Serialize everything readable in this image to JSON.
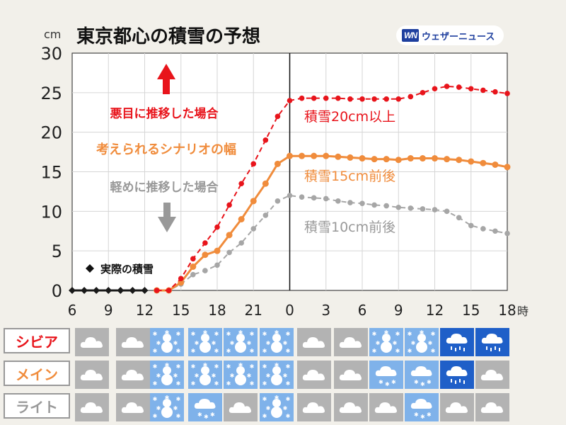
{
  "title": "東京都心の積雪の予想",
  "logo": {
    "mark": "WN",
    "text": "ウェザーニュース"
  },
  "chart_data": {
    "type": "line",
    "title": "東京都心の積雪の予想",
    "ylabel": "cm",
    "xlabel": "時",
    "ylim": [
      0,
      30
    ],
    "yticks": [
      0,
      5,
      10,
      15,
      20,
      25,
      30
    ],
    "x_range": [
      6,
      42
    ],
    "xticks": [
      {
        "x": 6,
        "label": "6"
      },
      {
        "x": 9,
        "label": "9"
      },
      {
        "x": 12,
        "label": "12"
      },
      {
        "x": 15,
        "label": "15"
      },
      {
        "x": 18,
        "label": "18"
      },
      {
        "x": 21,
        "label": "21"
      },
      {
        "x": 24,
        "label": "0"
      },
      {
        "x": 27,
        "label": "3"
      },
      {
        "x": 30,
        "label": "6"
      },
      {
        "x": 33,
        "label": "9"
      },
      {
        "x": 36,
        "label": "12"
      },
      {
        "x": 39,
        "label": "15"
      },
      {
        "x": 42,
        "label": "18"
      }
    ],
    "series": [
      {
        "name": "実際の積雪",
        "color": "#1a1a1a",
        "style": "solid",
        "marker": "diamond",
        "points": [
          [
            6,
            0
          ],
          [
            7,
            0
          ],
          [
            8,
            0
          ],
          [
            9,
            0
          ],
          [
            10,
            0
          ],
          [
            11,
            0
          ],
          [
            12,
            0
          ]
        ]
      },
      {
        "name": "悪目に推移した場合",
        "color": "#e8141b",
        "style": "dashed",
        "marker": "circle",
        "points": [
          [
            13,
            0
          ],
          [
            14,
            0
          ],
          [
            15,
            1.5
          ],
          [
            16,
            4
          ],
          [
            17,
            6
          ],
          [
            18,
            8
          ],
          [
            19,
            10.8
          ],
          [
            20,
            13.5
          ],
          [
            21,
            16
          ],
          [
            22,
            19
          ],
          [
            23,
            22
          ],
          [
            24,
            24
          ],
          [
            25,
            24.3
          ],
          [
            26,
            24.3
          ],
          [
            27,
            24.3
          ],
          [
            28,
            24.3
          ],
          [
            29,
            24.2
          ],
          [
            30,
            24.2
          ],
          [
            31,
            24.2
          ],
          [
            32,
            24.2
          ],
          [
            33,
            24.2
          ],
          [
            34,
            24.5
          ],
          [
            35,
            25
          ],
          [
            36,
            25.5
          ],
          [
            37,
            25.8
          ],
          [
            38,
            25.7
          ],
          [
            39,
            25.5
          ],
          [
            40,
            25.3
          ],
          [
            41,
            25.1
          ],
          [
            42,
            24.9
          ]
        ]
      },
      {
        "name": "メイン",
        "color": "#f08c3c",
        "style": "solid",
        "marker": "circle",
        "points": [
          [
            13,
            0
          ],
          [
            14,
            0
          ],
          [
            15,
            1
          ],
          [
            16,
            3
          ],
          [
            17,
            4.5
          ],
          [
            18,
            5
          ],
          [
            19,
            7
          ],
          [
            20,
            9
          ],
          [
            21,
            11.3
          ],
          [
            22,
            13.5
          ],
          [
            23,
            16
          ],
          [
            24,
            17
          ],
          [
            25,
            17
          ],
          [
            26,
            17
          ],
          [
            27,
            17
          ],
          [
            28,
            16.9
          ],
          [
            29,
            16.8
          ],
          [
            30,
            16.7
          ],
          [
            31,
            16.6
          ],
          [
            32,
            16.6
          ],
          [
            33,
            16.5
          ],
          [
            34,
            16.7
          ],
          [
            35,
            16.7
          ],
          [
            36,
            16.7
          ],
          [
            37,
            16.6
          ],
          [
            38,
            16.5
          ],
          [
            39,
            16.3
          ],
          [
            40,
            16.1
          ],
          [
            41,
            15.9
          ],
          [
            42,
            15.6
          ]
        ]
      },
      {
        "name": "ライト",
        "color": "#a6a6a6",
        "style": "dashed",
        "marker": "circle",
        "points": [
          [
            13,
            0
          ],
          [
            14,
            0
          ],
          [
            15,
            0.8
          ],
          [
            16,
            2
          ],
          [
            17,
            2.5
          ],
          [
            18,
            3.2
          ],
          [
            19,
            4.8
          ],
          [
            20,
            6
          ],
          [
            21,
            7.8
          ],
          [
            22,
            9.5
          ],
          [
            23,
            11.3
          ],
          [
            24,
            12
          ],
          [
            25,
            11.8
          ],
          [
            26,
            11.7
          ],
          [
            27,
            11.6
          ],
          [
            28,
            11.3
          ],
          [
            29,
            11.1
          ],
          [
            30,
            11
          ],
          [
            31,
            10.8
          ],
          [
            32,
            10.7
          ],
          [
            33,
            10.5
          ],
          [
            34,
            10.4
          ],
          [
            35,
            10.3
          ],
          [
            36,
            10.2
          ],
          [
            37,
            10
          ],
          [
            38,
            9.2
          ],
          [
            39,
            8.2
          ],
          [
            40,
            7.8
          ],
          [
            41,
            7.5
          ],
          [
            42,
            7.2
          ]
        ]
      }
    ],
    "annotations": [
      {
        "text": "悪目に推移した場合",
        "color": "#e8141b"
      },
      {
        "text": "考えられるシナリオの幅",
        "color": "#f08c3c"
      },
      {
        "text": "軽めに推移した場合",
        "color": "#999999"
      },
      {
        "text": "積雪20cm以上",
        "color": "#e8141b"
      },
      {
        "text": "積雪15cm前後",
        "color": "#f08c3c"
      },
      {
        "text": "積雪10cm前後",
        "color": "#999999"
      },
      {
        "text": "実際の積雪",
        "color": "#1a1a1a"
      }
    ]
  },
  "weather_rows": [
    {
      "label": "シビア",
      "color": "#e8141b",
      "cells": [
        "cloudy",
        "cloudy",
        "snow",
        "snow",
        "snow",
        "snow",
        "cloudy",
        "cloudy",
        "snow",
        "snow",
        "rain",
        "rain"
      ]
    },
    {
      "label": "メイン",
      "color": "#f08c3c",
      "cells": [
        "cloudy",
        "cloudy",
        "snow",
        "snow",
        "snow",
        "snow",
        "cloudy",
        "cloudy",
        "cloud-snow",
        "cloud-snow",
        "rain",
        "cloudy"
      ]
    },
    {
      "label": "ライト",
      "color": "#999999",
      "cells": [
        "cloudy",
        "cloudy",
        "snow",
        "cloud-snow",
        "cloudy",
        "snow",
        "cloudy",
        "cloudy",
        "cloudy",
        "cloud-snow",
        "cloudy",
        "cloudy"
      ]
    }
  ]
}
